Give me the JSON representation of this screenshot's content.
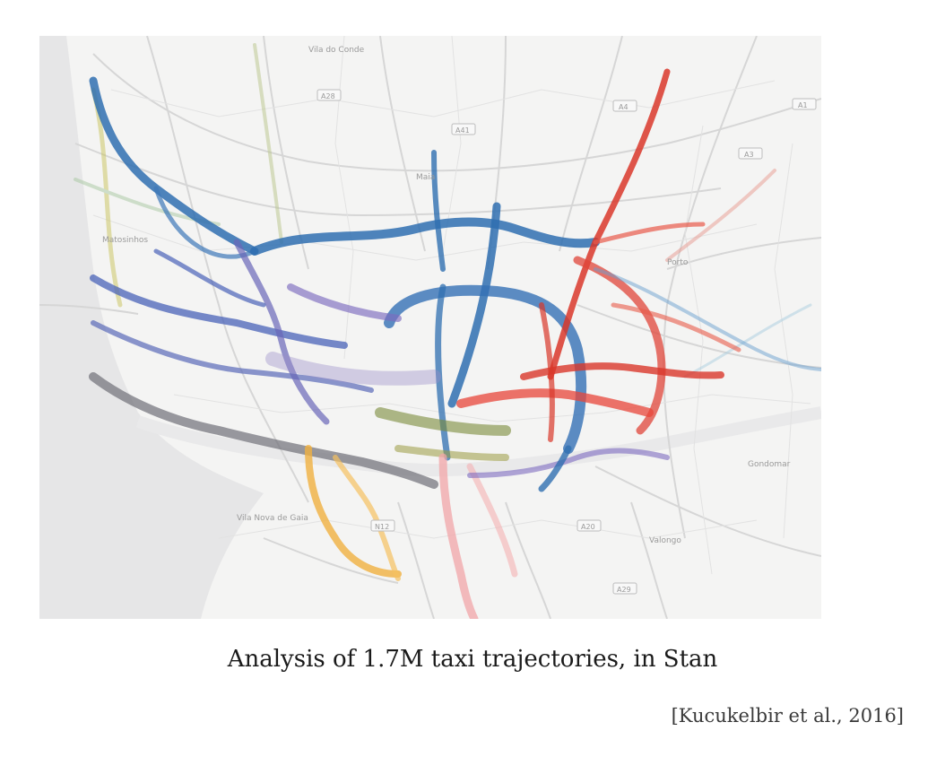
{
  "slide": {
    "caption": "Analysis of 1.7M taxi trajectories, in Stan",
    "citation": "[Kucukelbir et al., 2016]"
  },
  "map": {
    "place_labels": [
      "Vila do Conde",
      "Maia",
      "Matosinhos",
      "Porto",
      "Vila Nova de Gaia",
      "Gondomar",
      "Valongo"
    ],
    "road_badges": [
      "A28",
      "A41",
      "A4",
      "A3",
      "A1",
      "A20",
      "A29",
      "N12"
    ],
    "trajectory_palette": [
      "#2f6fb0",
      "#4a63b8",
      "#7d6bbf",
      "#9a8fc7",
      "#d9372a",
      "#e85a4a",
      "#f0b040",
      "#f2a5a8",
      "#7a8a5a",
      "#8c8c8c"
    ]
  }
}
